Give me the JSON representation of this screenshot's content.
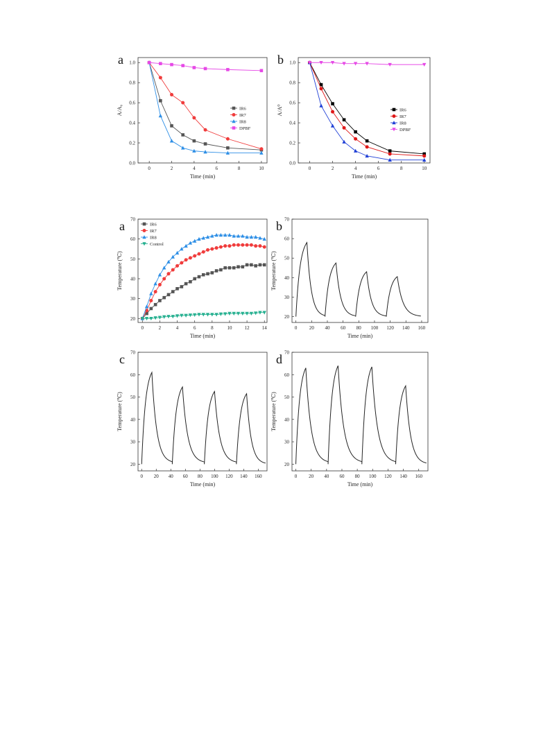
{
  "chart_data": [
    {
      "panel_label": "a",
      "type": "line",
      "xlabel": "Time (min)",
      "ylabel": "A/A₀",
      "xlim": [
        -1,
        10.5
      ],
      "ylim": [
        0,
        1.05
      ],
      "xticks": [
        0,
        2,
        4,
        6,
        8,
        10
      ],
      "yticks": [
        0.0,
        0.2,
        0.4,
        0.6,
        0.8,
        1.0
      ],
      "legend": "center-right",
      "grid": false,
      "series": [
        {
          "name": "IR6",
          "color": "#555555",
          "marker": "square",
          "x": [
            0,
            1,
            2,
            3,
            4,
            5,
            7,
            10
          ],
          "y": [
            1.0,
            0.62,
            0.37,
            0.28,
            0.22,
            0.19,
            0.15,
            0.13
          ]
        },
        {
          "name": "IR7",
          "color": "#f03c3c",
          "marker": "circle",
          "x": [
            0,
            1,
            2,
            3,
            4,
            5,
            7,
            10
          ],
          "y": [
            1.0,
            0.85,
            0.68,
            0.6,
            0.45,
            0.33,
            0.24,
            0.14
          ]
        },
        {
          "name": "IR8",
          "color": "#2e8fe6",
          "marker": "triangle-up",
          "x": [
            0,
            1,
            2,
            3,
            4,
            5,
            7,
            10
          ],
          "y": [
            1.0,
            0.47,
            0.22,
            0.15,
            0.12,
            0.11,
            0.1,
            0.1
          ]
        },
        {
          "name": "DPBF",
          "color": "#e649e6",
          "marker": "square",
          "x": [
            0,
            1,
            2,
            3,
            4,
            5,
            7,
            10
          ],
          "y": [
            1.0,
            0.99,
            0.98,
            0.97,
            0.95,
            0.94,
            0.93,
            0.92
          ]
        }
      ]
    },
    {
      "panel_label": "b",
      "type": "line",
      "xlabel": "Time (min)",
      "ylabel": "A/A⁰",
      "xlim": [
        -1,
        10.5
      ],
      "ylim": [
        0,
        1.05
      ],
      "xticks": [
        0,
        2,
        4,
        6,
        8,
        10
      ],
      "yticks": [
        0.0,
        0.2,
        0.4,
        0.6,
        0.8,
        1.0
      ],
      "legend": "center-right",
      "grid": false,
      "series": [
        {
          "name": "IR6",
          "color": "#000000",
          "marker": "square",
          "x": [
            0,
            1,
            2,
            3,
            4,
            5,
            7,
            10
          ],
          "y": [
            1.0,
            0.78,
            0.59,
            0.43,
            0.31,
            0.22,
            0.12,
            0.09
          ]
        },
        {
          "name": "IR7",
          "color": "#e01818",
          "marker": "circle",
          "x": [
            0,
            1,
            2,
            3,
            4,
            5,
            7,
            10
          ],
          "y": [
            1.0,
            0.74,
            0.51,
            0.35,
            0.24,
            0.16,
            0.09,
            0.07
          ]
        },
        {
          "name": "IR8",
          "color": "#1f3fd6",
          "marker": "triangle-up",
          "x": [
            0,
            1,
            2,
            3,
            4,
            5,
            7,
            10
          ],
          "y": [
            1.0,
            0.57,
            0.37,
            0.21,
            0.12,
            0.07,
            0.03,
            0.03
          ]
        },
        {
          "name": "DPBF",
          "color": "#e649e6",
          "marker": "triangle-down",
          "x": [
            0,
            1,
            2,
            3,
            4,
            5,
            7,
            10
          ],
          "y": [
            1.0,
            1.0,
            1.0,
            0.99,
            0.99,
            0.99,
            0.98,
            0.98
          ]
        }
      ]
    },
    {
      "panel_label": "a",
      "type": "line",
      "xlabel": "Time (min)",
      "ylabel": "Temperature (℃)",
      "xlim": [
        -0.5,
        14.3
      ],
      "ylim": [
        18,
        70
      ],
      "xticks": [
        0,
        2,
        4,
        6,
        8,
        10,
        12,
        14
      ],
      "yticks": [
        20,
        30,
        40,
        50,
        60,
        70
      ],
      "legend": "top-left",
      "grid": false,
      "series": [
        {
          "name": "IR6",
          "color": "#555555",
          "marker": "square",
          "x": [
            0,
            0.5,
            1,
            1.5,
            2,
            2.5,
            3,
            3.5,
            4,
            4.5,
            5,
            5.5,
            6,
            6.5,
            7,
            7.5,
            8,
            8.5,
            9,
            9.5,
            10,
            10.5,
            11,
            11.5,
            12,
            12.5,
            13,
            13.5,
            14
          ],
          "y": [
            20,
            22.5,
            25,
            27,
            29,
            30.5,
            32,
            33.5,
            35,
            36,
            37.5,
            38.5,
            40,
            41,
            42,
            42.5,
            43,
            44,
            44.5,
            45.5,
            45.5,
            45.5,
            46,
            46,
            47,
            47,
            46.5,
            47,
            47
          ]
        },
        {
          "name": "IR7",
          "color": "#f03c3c",
          "marker": "circle",
          "x": [
            0,
            0.5,
            1,
            1.5,
            2,
            2.5,
            3,
            3.5,
            4,
            4.5,
            5,
            5.5,
            6,
            6.5,
            7,
            7.5,
            8,
            8.5,
            9,
            9.5,
            10,
            10.5,
            11,
            11.5,
            12,
            12.5,
            13,
            13.5,
            14
          ],
          "y": [
            20,
            24,
            29,
            33.5,
            37,
            40,
            42.5,
            44.5,
            46.5,
            48,
            49.5,
            50.5,
            51.5,
            52.5,
            53.5,
            54.5,
            55,
            55.5,
            56,
            56.5,
            56.5,
            57,
            57,
            57,
            57,
            57,
            56.5,
            56.5,
            56
          ]
        },
        {
          "name": "IR8",
          "color": "#2e8fe6",
          "marker": "triangle-up",
          "x": [
            0,
            0.5,
            1,
            1.5,
            2,
            2.5,
            3,
            3.5,
            4,
            4.5,
            5,
            5.5,
            6,
            6.5,
            7,
            7.5,
            8,
            8.5,
            9,
            9.5,
            10,
            10.5,
            11,
            11.5,
            12,
            12.5,
            13,
            13.5,
            14
          ],
          "y": [
            20,
            26,
            32.5,
            37.5,
            42,
            45.5,
            48.5,
            51,
            53,
            55,
            56.5,
            58,
            59,
            60,
            60.5,
            61,
            61.5,
            62,
            62,
            62,
            62,
            61.5,
            61.5,
            61.5,
            61,
            61,
            61,
            60.5,
            60
          ]
        },
        {
          "name": "Control",
          "color": "#26b090",
          "marker": "triangle-down",
          "x": [
            0,
            0.5,
            1,
            1.5,
            2,
            2.5,
            3,
            3.5,
            4,
            4.5,
            5,
            5.5,
            6,
            6.5,
            7,
            7.5,
            8,
            8.5,
            9,
            9.5,
            10,
            10.5,
            11,
            11.5,
            12,
            12.5,
            13,
            13.5,
            14
          ],
          "y": [
            20,
            20,
            20,
            20.3,
            20.5,
            20.8,
            21,
            21,
            21.3,
            21.5,
            21.5,
            21.7,
            21.8,
            22,
            22,
            22,
            22,
            22,
            22.2,
            22.3,
            22.5,
            22.5,
            22.5,
            22.5,
            22.5,
            22.5,
            22.7,
            23,
            23
          ]
        }
      ]
    },
    {
      "panel_label": "b",
      "type": "line",
      "xlabel": "Time (min)",
      "ylabel": "Temperature (℃)",
      "xlim": [
        -5,
        168
      ],
      "ylim": [
        17,
        70
      ],
      "xticks": [
        0,
        20,
        40,
        60,
        80,
        100,
        120,
        140,
        160
      ],
      "yticks": [
        20,
        30,
        40,
        50,
        60,
        70
      ],
      "grid": false,
      "series": [
        {
          "color": "#222222",
          "marker": "none",
          "cycles": [
            {
              "start": 0,
              "peak_time": 14,
              "peak": 58,
              "end": 37,
              "end_temp": 20
            },
            {
              "start": 37,
              "peak_time": 51,
              "peak": 47.5,
              "end": 76,
              "end_temp": 20
            },
            {
              "start": 76,
              "peak_time": 90,
              "peak": 43,
              "end": 115,
              "end_temp": 20
            },
            {
              "start": 115,
              "peak_time": 129,
              "peak": 40.5,
              "end": 159,
              "end_temp": 20
            }
          ],
          "base_temp": 20
        }
      ]
    },
    {
      "panel_label": "c",
      "type": "line",
      "xlabel": "Time (min)",
      "ylabel": "Temperature (℃)",
      "xlim": [
        -5,
        172
      ],
      "ylim": [
        17,
        70
      ],
      "xticks": [
        0,
        20,
        40,
        60,
        80,
        100,
        120,
        140,
        160
      ],
      "yticks": [
        20,
        30,
        40,
        50,
        60,
        70
      ],
      "grid": false,
      "series": [
        {
          "color": "#222222",
          "marker": "none",
          "cycles": [
            {
              "start": 0,
              "peak_time": 14,
              "peak": 61,
              "end": 42,
              "end_temp": 20.5
            },
            {
              "start": 42,
              "peak_time": 56,
              "peak": 54.5,
              "end": 86,
              "end_temp": 20.5
            },
            {
              "start": 86,
              "peak_time": 100,
              "peak": 52.5,
              "end": 130,
              "end_temp": 20.5
            },
            {
              "start": 130,
              "peak_time": 144,
              "peak": 51.5,
              "end": 170,
              "end_temp": 20
            }
          ],
          "base_temp": 20
        }
      ]
    },
    {
      "panel_label": "d",
      "type": "line",
      "xlabel": "Time (min)",
      "ylabel": "Temperature (℃)",
      "xlim": [
        -5,
        172
      ],
      "ylim": [
        17,
        70
      ],
      "xticks": [
        0,
        20,
        40,
        60,
        80,
        100,
        120,
        140,
        160
      ],
      "yticks": [
        20,
        30,
        40,
        50,
        60,
        70
      ],
      "grid": false,
      "series": [
        {
          "color": "#222222",
          "marker": "none",
          "cycles": [
            {
              "start": 0,
              "peak_time": 13,
              "peak": 63,
              "end": 42,
              "end_temp": 20.5
            },
            {
              "start": 42,
              "peak_time": 55,
              "peak": 64,
              "end": 86,
              "end_temp": 20.5
            },
            {
              "start": 86,
              "peak_time": 99,
              "peak": 63.5,
              "end": 130,
              "end_temp": 20.5
            },
            {
              "start": 130,
              "peak_time": 143,
              "peak": 55,
              "end": 170,
              "end_temp": 20
            }
          ],
          "base_temp": 20
        }
      ]
    }
  ]
}
